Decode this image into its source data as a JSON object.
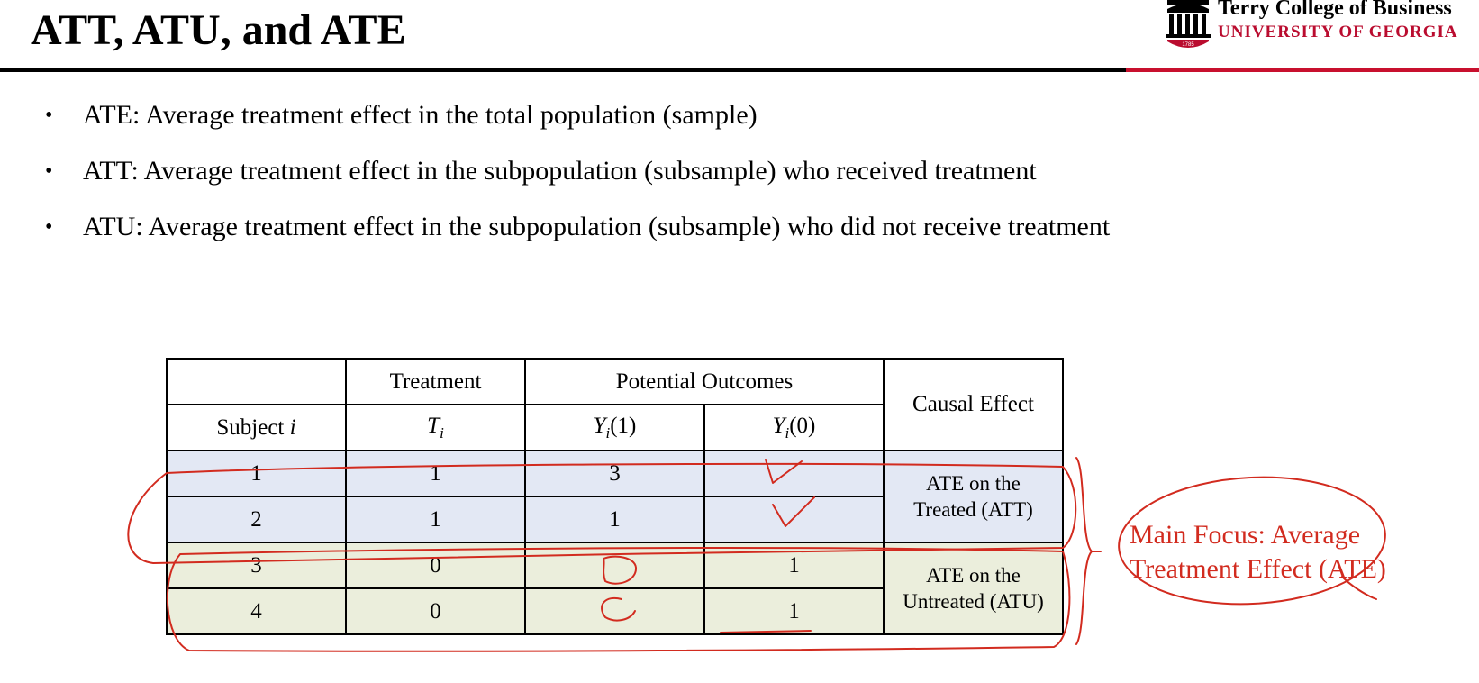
{
  "slide": {
    "title": "ATT, ATU, and ATE"
  },
  "logo": {
    "line1": "Terry College of Business",
    "line2": "UNIVERSITY OF GEORGIA",
    "seal_year": "1785",
    "icon": "arch-icon"
  },
  "bullets": [
    "ATE: Average treatment effect in the total population (sample)",
    "ATT: Average treatment effect in the subpopulation (subsample) who received treatment",
    "ATU: Average treatment effect in the subpopulation (subsample) who did not receive treatment"
  ],
  "table": {
    "header_treatment": "Treatment",
    "header_potential": "Potential Outcomes",
    "header_causal": "Causal Effect",
    "sub_subject": "Subject",
    "sub_subject_var": "i",
    "t_var": "T",
    "y_var": "Y",
    "index_var": "i",
    "y1_arg": "(1)",
    "y0_arg": "(0)",
    "rows": [
      {
        "subject": "1",
        "t": "1",
        "y1": "3",
        "y0": ""
      },
      {
        "subject": "2",
        "t": "1",
        "y1": "1",
        "y0": ""
      },
      {
        "subject": "3",
        "t": "0",
        "y1": "",
        "y0": "1"
      },
      {
        "subject": "4",
        "t": "0",
        "y1": "",
        "y0": "1"
      }
    ],
    "att_label_1": "ATE on the",
    "att_label_2": "Treated (ATT)",
    "atu_label_1": "ATE on the",
    "atu_label_2": "Untreated (ATU)"
  },
  "annotation": {
    "line1": "Main Focus: Average",
    "line2": "Treatment Effect (ATE)"
  },
  "colors": {
    "accent_red": "#c8102e",
    "ink_red": "#d22b1f",
    "treated_row_bg": "#e3e8f4",
    "untreated_row_bg": "#ebeedc"
  }
}
